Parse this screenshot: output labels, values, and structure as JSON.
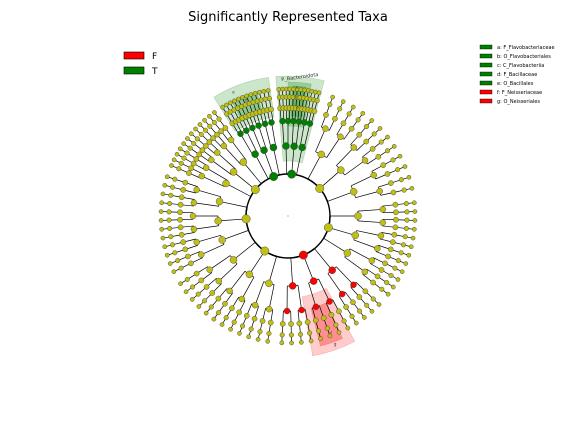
{
  "chart_data": {
    "type": "cladogram",
    "title": "Significantly Represented Taxa",
    "classes": [
      {
        "name": "F",
        "color": "#ff0000"
      },
      {
        "name": "T",
        "color": "#008000"
      }
    ],
    "node_color_default": "#bfbf16",
    "biomarkers": [
      {
        "label": "a: F_Flavobacteriaceae",
        "class": "T"
      },
      {
        "label": "b: O_Flavobacteriales",
        "class": "T"
      },
      {
        "label": "c: C_Flavobacteriia",
        "class": "T"
      },
      {
        "label": "d: F_Bacillaceae",
        "class": "T"
      },
      {
        "label": "e: O_Bacillales",
        "class": "T"
      },
      {
        "label": "f: F_Neisseriaceae",
        "class": "F"
      },
      {
        "label": "g: O_Neisseriales",
        "class": "F"
      }
    ],
    "clade_labels": [
      {
        "text": "P_Bacteroidota",
        "class": "T"
      },
      {
        "text": "c",
        "class": "T"
      },
      {
        "text": "b",
        "class": "T"
      },
      {
        "text": "a",
        "class": "T"
      },
      {
        "text": "e",
        "class": "T"
      },
      {
        "text": "d",
        "class": "T"
      },
      {
        "text": "g",
        "class": "F"
      },
      {
        "text": "f",
        "class": "F"
      }
    ]
  }
}
